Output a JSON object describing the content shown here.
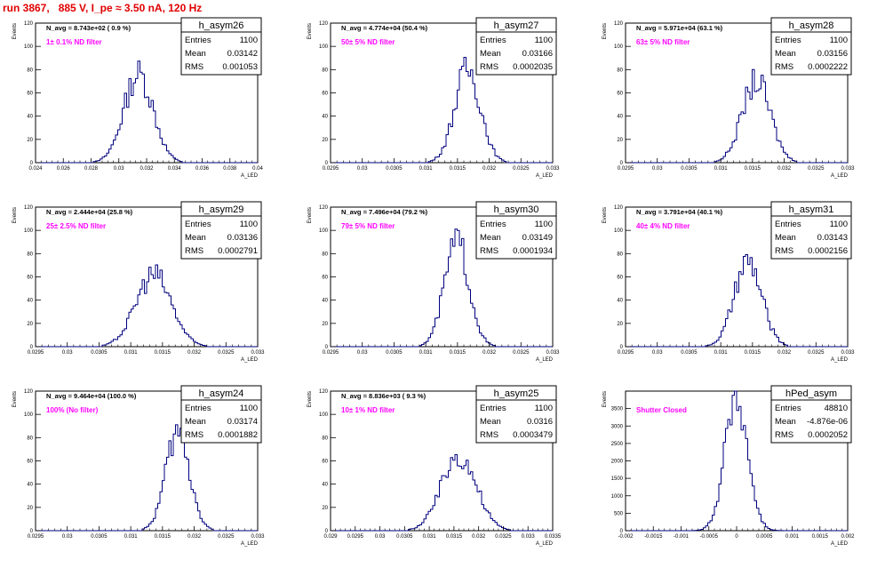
{
  "run_title": "run 3867,   885 V, I_pe ≈ 3.50 nA, 120 Hz",
  "colors": {
    "title": "#e00000",
    "annotation": "#ff00ff",
    "histogram": "#00007f",
    "axis": "#000000"
  },
  "chart_data": [
    {
      "type": "histogram",
      "name": "h_asym26",
      "stats": {
        "entries_label": "Entries",
        "entries": "1100",
        "mean_label": "Mean",
        "mean": "0.03142",
        "rms_label": "RMS",
        "rms": "0.001053"
      },
      "navg": "N_avg = 8.743e+02 ( 0.9 %)",
      "annotation": "1± 0.1% ND filter",
      "xlabel": "A_LED",
      "ylabel": "Events",
      "xlim": [
        0.024,
        0.04
      ],
      "ylim": [
        0,
        120
      ],
      "xticks": [
        "0.024",
        "0.026",
        "0.028",
        "0.03",
        "0.032",
        "0.034",
        "0.036",
        "0.038",
        "0.04"
      ],
      "yticks": [
        "0",
        "20",
        "40",
        "60",
        "80",
        "100",
        "120"
      ],
      "mean": 0.03142,
      "rms": 0.001053,
      "peak": 76
    },
    {
      "type": "histogram",
      "name": "h_asym27",
      "stats": {
        "entries_label": "Entries",
        "entries": "1100",
        "mean_label": "Mean",
        "mean": "0.03166",
        "rms_label": "RMS",
        "rms": "0.0002035"
      },
      "navg": "N_avg = 4.774e+04 (50.4 %)",
      "annotation": "50± 5% ND filter",
      "xlabel": "A_LED",
      "ylabel": "Events",
      "xlim": [
        0.0295,
        0.033
      ],
      "ylim": [
        0,
        120
      ],
      "xticks": [
        "0.0295",
        "0.03",
        "0.0305",
        "0.031",
        "0.0315",
        "0.032",
        "0.0325",
        "0.033"
      ],
      "yticks": [
        "0",
        "20",
        "40",
        "60",
        "80",
        "100",
        "120"
      ],
      "mean": 0.03166,
      "rms": 0.0002035,
      "peak": 80
    },
    {
      "type": "histogram",
      "name": "h_asym28",
      "stats": {
        "entries_label": "Entries",
        "entries": "1100",
        "mean_label": "Mean",
        "mean": "0.03156",
        "rms_label": "RMS",
        "rms": "0.0002222"
      },
      "navg": "N_avg = 5.971e+04 (63.1 %)",
      "annotation": "63± 5% ND filter",
      "xlabel": "A_LED",
      "ylabel": "Events",
      "xlim": [
        0.0295,
        0.033
      ],
      "ylim": [
        0,
        120
      ],
      "xticks": [
        "0.0295",
        "0.03",
        "0.0305",
        "0.031",
        "0.0315",
        "0.032",
        "0.0325",
        "0.033"
      ],
      "yticks": [
        "0",
        "20",
        "40",
        "60",
        "80",
        "100",
        "120"
      ],
      "mean": 0.03156,
      "rms": 0.0002222,
      "peak": 70
    },
    {
      "type": "histogram",
      "name": "h_asym29",
      "stats": {
        "entries_label": "Entries",
        "entries": "1100",
        "mean_label": "Mean",
        "mean": "0.03136",
        "rms_label": "RMS",
        "rms": "0.0002791"
      },
      "navg": "N_avg = 2.444e+04 (25.8 %)",
      "annotation": "25± 2.5% ND filter",
      "xlabel": "A_LED",
      "ylabel": "Events",
      "xlim": [
        0.0295,
        0.033
      ],
      "ylim": [
        0,
        120
      ],
      "xticks": [
        "0.0295",
        "0.03",
        "0.0305",
        "0.031",
        "0.0315",
        "0.032",
        "0.0325",
        "0.033"
      ],
      "yticks": [
        "0",
        "20",
        "40",
        "60",
        "80",
        "100",
        "120"
      ],
      "mean": 0.03136,
      "rms": 0.0002791,
      "peak": 62
    },
    {
      "type": "histogram",
      "name": "h_asym30",
      "stats": {
        "entries_label": "Entries",
        "entries": "1100",
        "mean_label": "Mean",
        "mean": "0.03149",
        "rms_label": "RMS",
        "rms": "0.0001934"
      },
      "navg": "N_avg = 7.496e+04 (79.2 %)",
      "annotation": "79± 5% ND filter",
      "xlabel": "A_LED",
      "ylabel": "Events",
      "xlim": [
        0.0295,
        0.033
      ],
      "ylim": [
        0,
        120
      ],
      "xticks": [
        "0.0295",
        "0.03",
        "0.0305",
        "0.031",
        "0.0315",
        "0.032",
        "0.0325",
        "0.033"
      ],
      "yticks": [
        "0",
        "20",
        "40",
        "60",
        "80",
        "100",
        "120"
      ],
      "mean": 0.03149,
      "rms": 0.0001934,
      "peak": 90
    },
    {
      "type": "histogram",
      "name": "h_asym31",
      "stats": {
        "entries_label": "Entries",
        "entries": "1100",
        "mean_label": "Mean",
        "mean": "0.03143",
        "rms_label": "RMS",
        "rms": "0.0002156"
      },
      "navg": "N_avg = 3.791e+04 (40.1 %)",
      "annotation": "40± 4% ND filter",
      "xlabel": "A_LED",
      "ylabel": "Events",
      "xlim": [
        0.0295,
        0.033
      ],
      "ylim": [
        0,
        120
      ],
      "xticks": [
        "0.0295",
        "0.03",
        "0.0305",
        "0.031",
        "0.0315",
        "0.032",
        "0.0325",
        "0.033"
      ],
      "yticks": [
        "0",
        "20",
        "40",
        "60",
        "80",
        "100",
        "120"
      ],
      "mean": 0.03143,
      "rms": 0.0002156,
      "peak": 72
    },
    {
      "type": "histogram",
      "name": "h_asym24",
      "stats": {
        "entries_label": "Entries",
        "entries": "1100",
        "mean_label": "Mean",
        "mean": "0.03174",
        "rms_label": "RMS",
        "rms": "0.0001882"
      },
      "navg": "N_avg = 9.464e+04 (100.0 %)",
      "annotation": "100% (No filter)",
      "xlabel": "A_LED",
      "ylabel": "Events",
      "xlim": [
        0.0295,
        0.033
      ],
      "ylim": [
        0,
        120
      ],
      "xticks": [
        "0.0295",
        "0.03",
        "0.0305",
        "0.031",
        "0.0315",
        "0.032",
        "0.0325",
        "0.033"
      ],
      "yticks": [
        "0",
        "20",
        "40",
        "60",
        "80",
        "100",
        "120"
      ],
      "mean": 0.03174,
      "rms": 0.0001882,
      "peak": 84
    },
    {
      "type": "histogram",
      "name": "h_asym25",
      "stats": {
        "entries_label": "Entries",
        "entries": "1100",
        "mean_label": "Mean",
        "mean": "0.0316",
        "rms_label": "RMS",
        "rms": "0.0003479"
      },
      "navg": "N_avg = 8.836e+03 ( 9.3 %)",
      "annotation": "10± 1% ND filter",
      "xlabel": "A_LED",
      "ylabel": "Events",
      "xlim": [
        0.029,
        0.0335
      ],
      "ylim": [
        0,
        120
      ],
      "xticks": [
        "0.029",
        "0.0295",
        "0.03",
        "0.0305",
        "0.031",
        "0.0315",
        "0.032",
        "0.0325",
        "0.033",
        "0.0335"
      ],
      "yticks": [
        "0",
        "20",
        "40",
        "60",
        "80",
        "100",
        "120"
      ],
      "mean": 0.0316,
      "rms": 0.0003479,
      "peak": 65
    },
    {
      "type": "histogram",
      "name": "hPed_asym",
      "stats": {
        "entries_label": "Entries",
        "entries": "48810",
        "mean_label": "Mean",
        "mean": "-4.876e-06",
        "rms_label": "RMS",
        "rms": "0.0002052"
      },
      "navg": "",
      "annotation": "Shutter Closed",
      "xlabel": "A_LED",
      "ylabel": "Events",
      "xlim": [
        -0.002,
        0.002
      ],
      "ylim": [
        0,
        4000
      ],
      "xticks": [
        "-0.002",
        "-0.0015",
        "-0.001",
        "-0.0005",
        "0",
        "0.0005",
        "0.001",
        "0.0015",
        "0.002"
      ],
      "yticks": [
        "0",
        "500",
        "1000",
        "1500",
        "2000",
        "2500",
        "3000",
        "3500"
      ],
      "ytick_values": [
        0,
        500,
        1000,
        1500,
        2000,
        2500,
        3000,
        3500
      ],
      "mean": -4.876e-06,
      "rms": 0.0002052,
      "peak": 3820
    }
  ]
}
